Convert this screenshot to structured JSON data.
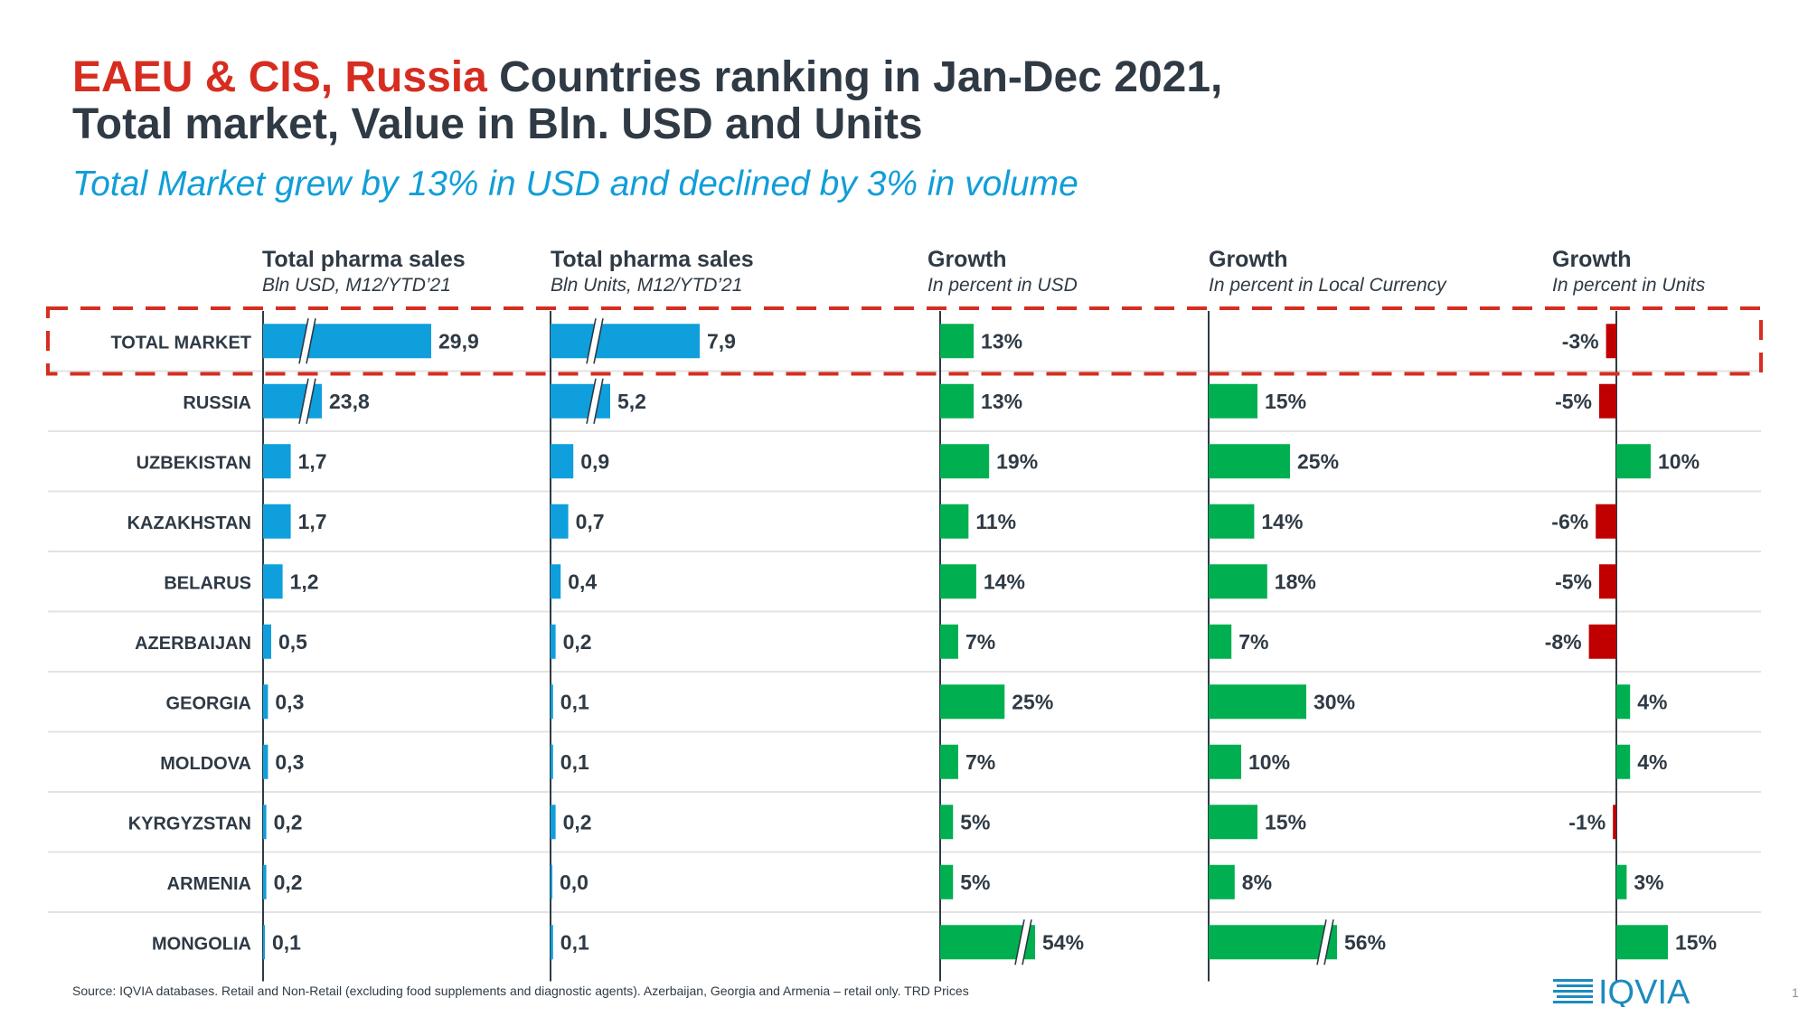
{
  "header": {
    "title_red": "EAEU & CIS, Russia",
    "title_line1_rest": " Countries ranking in Jan-Dec 2021,",
    "title_line2": "Total market, Value in Bln. USD and Units",
    "subtitle": "Total Market grew by 13% in USD and declined by 3% in volume"
  },
  "columns": [
    {
      "title": "Total pharma sales",
      "sub": "Bln USD, M12/YTD’21"
    },
    {
      "title": "Total pharma sales",
      "sub": "Bln Units, M12/YTD’21"
    },
    {
      "title": "Growth",
      "sub": "In percent in USD"
    },
    {
      "title": "Growth",
      "sub": "In percent in Local Currency"
    },
    {
      "title": "Growth",
      "sub": "In percent in Units"
    }
  ],
  "footer": {
    "source": "Source: IQVIA databases. Retail and Non-Retail (excluding food supplements and diagnostic agents). Azerbaijan, Georgia and Armenia – retail only. TRD Prices",
    "logo_text": "IQVIA",
    "page_number": "1"
  },
  "chart_data": {
    "type": "bar",
    "categories": [
      "TOTAL MARKET",
      "RUSSIA",
      "UZBEKISTAN",
      "KAZAKHSTAN",
      "BELARUS",
      "AZERBAIJAN",
      "GEORGIA",
      "MOLDOVA",
      "KYRGYZSTAN",
      "ARMENIA",
      "MONGOLIA"
    ],
    "highlighted_category": "TOTAL MARKET",
    "series": [
      {
        "values": [
          29.9,
          23.8,
          1.7,
          1.7,
          1.2,
          0.5,
          0.3,
          0.3,
          0.2,
          0.2,
          0.1
        ],
        "labels": [
          "29,9",
          "23,8",
          "1,7",
          "1,7",
          "1,2",
          "0,5",
          "0,3",
          "0,3",
          "0,2",
          "0,2",
          "0,1"
        ],
        "broken_axis": [
          true,
          true,
          false,
          false,
          false,
          false,
          false,
          false,
          false,
          false,
          false
        ],
        "color": "#0e9fdc"
      },
      {
        "values": [
          7.9,
          5.2,
          0.9,
          0.7,
          0.4,
          0.2,
          0.1,
          0.1,
          0.2,
          0.0,
          0.1
        ],
        "labels": [
          "7,9",
          "5,2",
          "0,9",
          "0,7",
          "0,4",
          "0,2",
          "0,1",
          "0,1",
          "0,2",
          "0,0",
          "0,1"
        ],
        "broken_axis": [
          true,
          true,
          false,
          false,
          false,
          false,
          false,
          false,
          false,
          false,
          false
        ],
        "color": "#0e9fdc"
      },
      {
        "values": [
          13,
          13,
          19,
          11,
          14,
          7,
          25,
          7,
          5,
          5,
          54
        ],
        "labels": [
          "13%",
          "13%",
          "19%",
          "11%",
          "14%",
          "7%",
          "25%",
          "7%",
          "5%",
          "5%",
          "54%"
        ],
        "broken_axis": [
          false,
          false,
          false,
          false,
          false,
          false,
          false,
          false,
          false,
          false,
          true
        ],
        "color": "#00b050"
      },
      {
        "values": [
          null,
          15,
          25,
          14,
          18,
          7,
          30,
          10,
          15,
          8,
          56
        ],
        "labels": [
          "",
          "15%",
          "25%",
          "14%",
          "18%",
          "7%",
          "30%",
          "10%",
          "15%",
          "8%",
          "56%"
        ],
        "broken_axis": [
          false,
          false,
          false,
          false,
          false,
          false,
          false,
          false,
          false,
          false,
          true
        ],
        "color": "#00b050"
      },
      {
        "values": [
          -3,
          -5,
          10,
          -6,
          -5,
          -8,
          4,
          4,
          -1,
          3,
          15
        ],
        "labels": [
          "-3%",
          "-5%",
          "10%",
          "-6%",
          "-5%",
          "-8%",
          "4%",
          "4%",
          "-1%",
          "3%",
          "15%"
        ],
        "broken_axis": [
          false,
          false,
          false,
          false,
          false,
          false,
          false,
          false,
          false,
          false,
          false
        ],
        "color_positive": "#00b050",
        "color_negative": "#c00000"
      }
    ]
  }
}
